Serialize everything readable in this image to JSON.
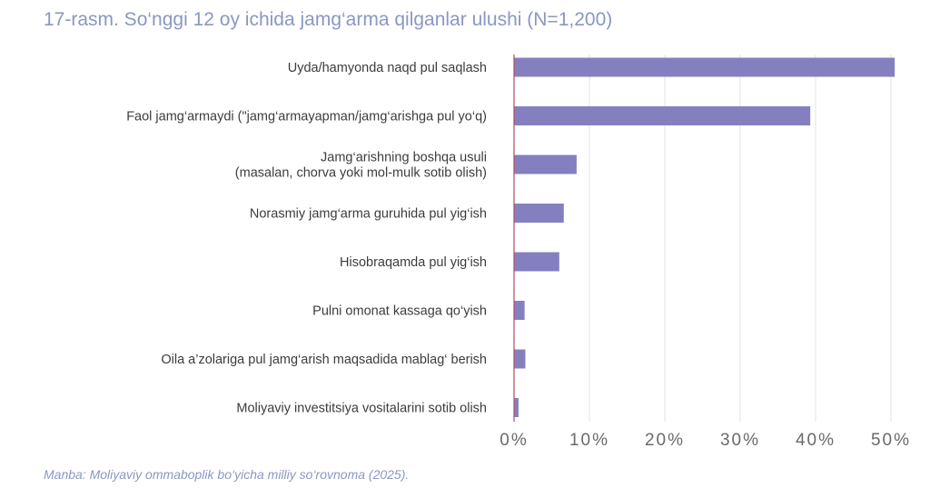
{
  "chart_data": {
    "type": "bar",
    "orientation": "horizontal",
    "title": "17-rasm. So‘nggi 12 oy ichida jamg‘arma qilganlar ulushi (N=1,200)",
    "categories": [
      [
        "Uyda/hamyonda naqd pul saqlash"
      ],
      [
        "Faol jamg‘armaydi (\"jamg‘armayapman/jamg‘arishga pul yo‘q)"
      ],
      [
        "Jamg‘arishning boshqa usuli",
        "(masalan, chorva yoki mol-mulk sotib olish)"
      ],
      [
        "Norasmiy jamg‘arma guruhida pul yig‘ish"
      ],
      [
        "Hisobraqamda pul yig‘ish"
      ],
      [
        "Pulni omonat kassaga qo‘yish"
      ],
      [
        "Oila a’zolariga pul jamg‘arish maqsadida mablag‘ berish"
      ],
      [
        "Moliyaviy investitsiya vositalarini sotib olish"
      ]
    ],
    "values": [
      50.5,
      39.3,
      8.3,
      6.6,
      6.0,
      1.4,
      1.5,
      0.6
    ],
    "xlim": [
      0,
      50
    ],
    "xticks": [
      "0%",
      "10%",
      "20%",
      "30%",
      "40%",
      "50%"
    ],
    "xtick_values": [
      0,
      10,
      20,
      30,
      40,
      50
    ],
    "grid": true,
    "colors": {
      "bar": "#8480bf",
      "axis": "#b04a64",
      "grid": "#e3e3e3",
      "label": "#3c3c3c",
      "tick": "#6a6a6a"
    }
  },
  "source_note": "Manba: Moliyaviy ommaboplik bo‘yicha milliy so‘rovnoma (2025)."
}
